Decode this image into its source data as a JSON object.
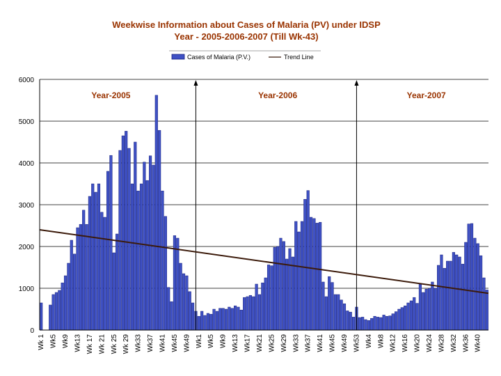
{
  "chart_data": {
    "type": "bar",
    "title": "Weekwise Information about Cases of Malaria (PV) under IDSP",
    "subtitle": "Year - 2005-2006-2007 (Till Wk-43)",
    "legend": {
      "series_label": "Cases of Malaria (P.V.)",
      "trend_label": "Trend Line",
      "placement": "top-center"
    },
    "ylim": [
      0,
      6000
    ],
    "yticks": [
      0,
      1000,
      2000,
      3000,
      4000,
      5000,
      6000
    ],
    "grid": true,
    "x_tick_labels": [
      {
        "index": 0,
        "label": "Wk 1"
      },
      {
        "index": 4,
        "label": "Wk5"
      },
      {
        "index": 8,
        "label": "Wk9"
      },
      {
        "index": 12,
        "label": "Wk13"
      },
      {
        "index": 16,
        "label": "Wk 17"
      },
      {
        "index": 20,
        "label": "Wk 21"
      },
      {
        "index": 24,
        "label": "Wk 25"
      },
      {
        "index": 28,
        "label": "Wk 29"
      },
      {
        "index": 32,
        "label": "Wk33"
      },
      {
        "index": 36,
        "label": "Wk37"
      },
      {
        "index": 40,
        "label": "Wk41"
      },
      {
        "index": 44,
        "label": "Wk45"
      },
      {
        "index": 48,
        "label": "Wk49"
      },
      {
        "index": 52,
        "label": "Wk1"
      },
      {
        "index": 56,
        "label": "Wk5"
      },
      {
        "index": 60,
        "label": "Wk9"
      },
      {
        "index": 64,
        "label": "Wk13"
      },
      {
        "index": 68,
        "label": "Wk17"
      },
      {
        "index": 72,
        "label": "Wk21"
      },
      {
        "index": 76,
        "label": "Wk25"
      },
      {
        "index": 80,
        "label": "Wk29"
      },
      {
        "index": 84,
        "label": "Wk33"
      },
      {
        "index": 88,
        "label": "Wk37"
      },
      {
        "index": 92,
        "label": "Wk41"
      },
      {
        "index": 96,
        "label": "Wk45"
      },
      {
        "index": 100,
        "label": "Wk49"
      },
      {
        "index": 104,
        "label": "Wk53"
      },
      {
        "index": 108,
        "label": "Wk4"
      },
      {
        "index": 112,
        "label": "Wk8"
      },
      {
        "index": 116,
        "label": "Wk12"
      },
      {
        "index": 120,
        "label": "Wk16"
      },
      {
        "index": 124,
        "label": "Wk20"
      },
      {
        "index": 128,
        "label": "Wk24"
      },
      {
        "index": 132,
        "label": "Wk28"
      },
      {
        "index": 136,
        "label": "Wk32"
      },
      {
        "index": 140,
        "label": "Wk36"
      },
      {
        "index": 144,
        "label": "Wk40"
      }
    ],
    "period_labels": [
      {
        "label": "Year-2005",
        "center_index": 23
      },
      {
        "label": "Year-2006",
        "center_index": 78
      },
      {
        "label": "Year-2007",
        "center_index": 127
      }
    ],
    "year_dividers_at_index": [
      51.5,
      104.5
    ],
    "trend": {
      "start_value": 2400,
      "end_value": 880
    },
    "values": [
      650,
      0,
      0,
      600,
      850,
      900,
      950,
      1130,
      1300,
      1600,
      2150,
      1820,
      2450,
      2530,
      2870,
      2530,
      3200,
      3500,
      3300,
      3500,
      2820,
      2700,
      3800,
      4180,
      1850,
      2300,
      4300,
      4650,
      4760,
      4350,
      3500,
      4500,
      3330,
      3500,
      4020,
      3580,
      4170,
      3950,
      5620,
      4780,
      3330,
      2720,
      1020,
      680,
      2260,
      2200,
      1600,
      1350,
      1300,
      920,
      650,
      450,
      330,
      450,
      350,
      400,
      380,
      500,
      450,
      520,
      520,
      500,
      550,
      520,
      580,
      550,
      480,
      780,
      800,
      830,
      800,
      1100,
      850,
      1130,
      1250,
      1560,
      1540,
      1980,
      2000,
      2200,
      2120,
      1700,
      1950,
      1750,
      2600,
      2350,
      2600,
      3130,
      3340,
      2700,
      2670,
      2560,
      2580,
      1150,
      800,
      1280,
      1140,
      850,
      850,
      720,
      630,
      460,
      430,
      310,
      550,
      300,
      310,
      250,
      230,
      280,
      330,
      310,
      300,
      360,
      330,
      340,
      390,
      440,
      500,
      540,
      580,
      650,
      700,
      780,
      640,
      1100,
      900,
      980,
      1000,
      1150,
      1000,
      1550,
      1800,
      1480,
      1650,
      1650,
      1860,
      1800,
      1750,
      1580,
      2100,
      2540,
      2550,
      2200,
      2070,
      1780,
      1250,
      960
    ]
  }
}
